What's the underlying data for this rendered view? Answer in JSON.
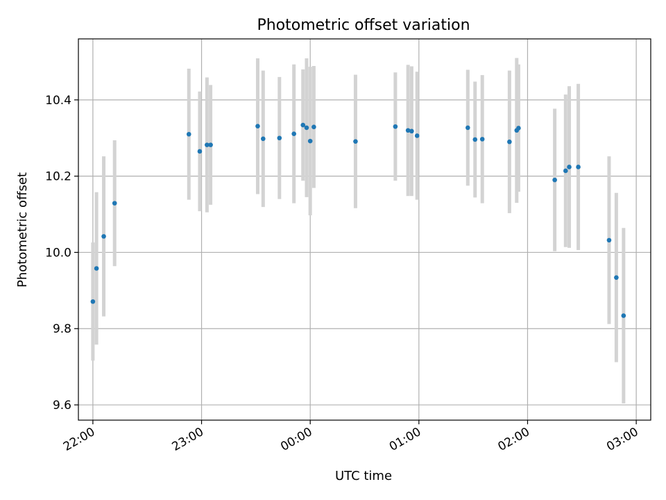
{
  "chart_data": {
    "type": "scatter",
    "title": "Photometric offset variation",
    "xlabel": "UTC time",
    "ylabel": "Photometric offset",
    "xlim": [
      "21:52",
      "03:08"
    ],
    "ylim": [
      9.56,
      10.56
    ],
    "x_ticks": [
      "22:00",
      "23:00",
      "00:00",
      "01:00",
      "02:00",
      "03:00"
    ],
    "y_ticks": [
      9.6,
      9.8,
      10.0,
      10.2,
      10.4
    ],
    "y_tick_labels": [
      "9.6",
      "9.8",
      "10.0",
      "10.2",
      "10.4"
    ],
    "grid": true,
    "marker_color": "#1f77b4",
    "errorbar_color": "#d3d3d3",
    "series": [
      {
        "points": [
          {
            "t": "22:00",
            "y": 9.871,
            "err": 0.155
          },
          {
            "t": "22:02",
            "y": 9.958,
            "err": 0.2
          },
          {
            "t": "22:06",
            "y": 10.042,
            "err": 0.21
          },
          {
            "t": "22:12",
            "y": 10.129,
            "err": 0.165
          },
          {
            "t": "22:53",
            "y": 10.31,
            "err": 0.172
          },
          {
            "t": "22:59",
            "y": 10.265,
            "err": 0.157
          },
          {
            "t": "23:03",
            "y": 10.282,
            "err": 0.177
          },
          {
            "t": "23:05",
            "y": 10.282,
            "err": 0.157
          },
          {
            "t": "23:31",
            "y": 10.331,
            "err": 0.178
          },
          {
            "t": "23:34",
            "y": 10.298,
            "err": 0.179
          },
          {
            "t": "23:43",
            "y": 10.3,
            "err": 0.16
          },
          {
            "t": "23:51",
            "y": 10.311,
            "err": 0.182
          },
          {
            "t": "23:56",
            "y": 10.334,
            "err": 0.146
          },
          {
            "t": "23:58",
            "y": 10.327,
            "err": 0.182
          },
          {
            "t": "00:00",
            "y": 10.292,
            "err": 0.195
          },
          {
            "t": "00:02",
            "y": 10.329,
            "err": 0.16
          },
          {
            "t": "00:25",
            "y": 10.291,
            "err": 0.175
          },
          {
            "t": "00:47",
            "y": 10.33,
            "err": 0.142
          },
          {
            "t": "00:54",
            "y": 10.32,
            "err": 0.172
          },
          {
            "t": "00:56",
            "y": 10.318,
            "err": 0.17
          },
          {
            "t": "00:59",
            "y": 10.306,
            "err": 0.168
          },
          {
            "t": "01:27",
            "y": 10.327,
            "err": 0.152
          },
          {
            "t": "01:31",
            "y": 10.296,
            "err": 0.152
          },
          {
            "t": "01:35",
            "y": 10.297,
            "err": 0.168
          },
          {
            "t": "01:50",
            "y": 10.29,
            "err": 0.187
          },
          {
            "t": "01:54",
            "y": 10.32,
            "err": 0.19
          },
          {
            "t": "01:55",
            "y": 10.326,
            "err": 0.167
          },
          {
            "t": "02:15",
            "y": 10.19,
            "err": 0.187
          },
          {
            "t": "02:21",
            "y": 10.214,
            "err": 0.2
          },
          {
            "t": "02:23",
            "y": 10.224,
            "err": 0.212
          },
          {
            "t": "02:28",
            "y": 10.224,
            "err": 0.218
          },
          {
            "t": "02:45",
            "y": 10.032,
            "err": 0.22
          },
          {
            "t": "02:49",
            "y": 9.934,
            "err": 0.222
          },
          {
            "t": "02:53",
            "y": 9.834,
            "err": 0.23
          }
        ]
      }
    ]
  }
}
